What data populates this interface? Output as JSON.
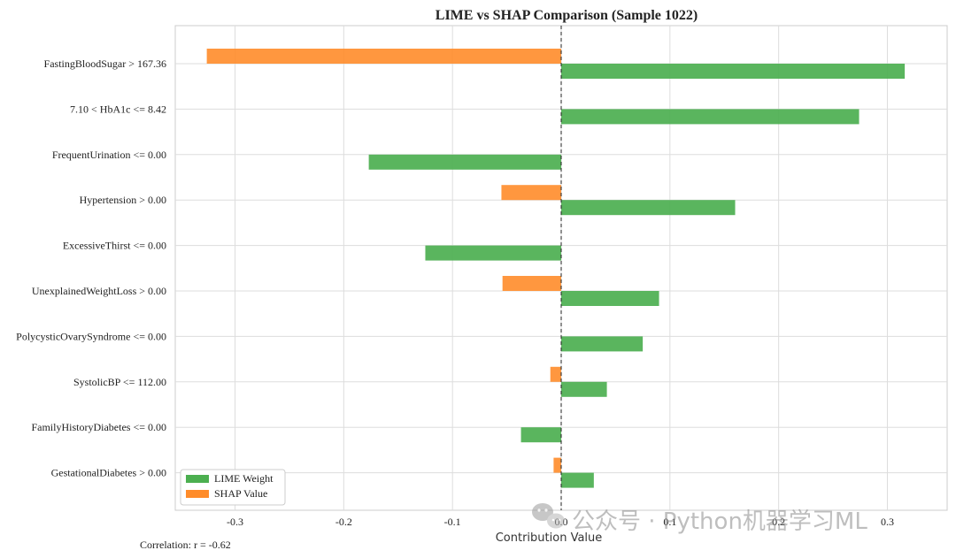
{
  "chart_data": {
    "type": "bar",
    "orientation": "horizontal",
    "title": "LIME vs SHAP Comparison (Sample 1022)",
    "xlabel": "Contribution Value",
    "ylabel": "",
    "xlim": [
      -0.355,
      0.355
    ],
    "xticks": [
      -0.3,
      -0.2,
      -0.1,
      0.0,
      0.1,
      0.2,
      0.3
    ],
    "xtick_labels": [
      "-0.3",
      "-0.2",
      "-0.1",
      "0.0",
      "0.1",
      "0.2",
      "0.3"
    ],
    "grid": true,
    "reference_line": 0,
    "legend_position": "lower-left",
    "categories": [
      "FastingBloodSugar > 167.36",
      "7.10 < HbA1c <= 8.42",
      "FrequentUrination <= 0.00",
      "Hypertension > 0.00",
      "ExcessiveThirst <= 0.00",
      "UnexplainedWeightLoss > 0.00",
      "PolycysticOvarySyndrome <= 0.00",
      "SystolicBP <= 112.00",
      "FamilyHistoryDiabetes <= 0.00",
      "GestationalDiabetes > 0.00"
    ],
    "series": [
      {
        "name": "LIME Weight",
        "color": "#4caf50",
        "values": [
          0.316,
          0.274,
          -0.177,
          0.16,
          -0.125,
          0.09,
          0.075,
          0.042,
          -0.037,
          0.03
        ]
      },
      {
        "name": "SHAP Value",
        "color": "#ff8c2a",
        "values": [
          -0.326,
          0,
          0,
          -0.055,
          0,
          -0.054,
          0,
          -0.01,
          0,
          -0.007
        ]
      }
    ],
    "annotation": "Correlation: r = -0.62"
  },
  "watermark": {
    "text": "公众号 · Python机器学习ML",
    "icon": "wechat-icon"
  }
}
